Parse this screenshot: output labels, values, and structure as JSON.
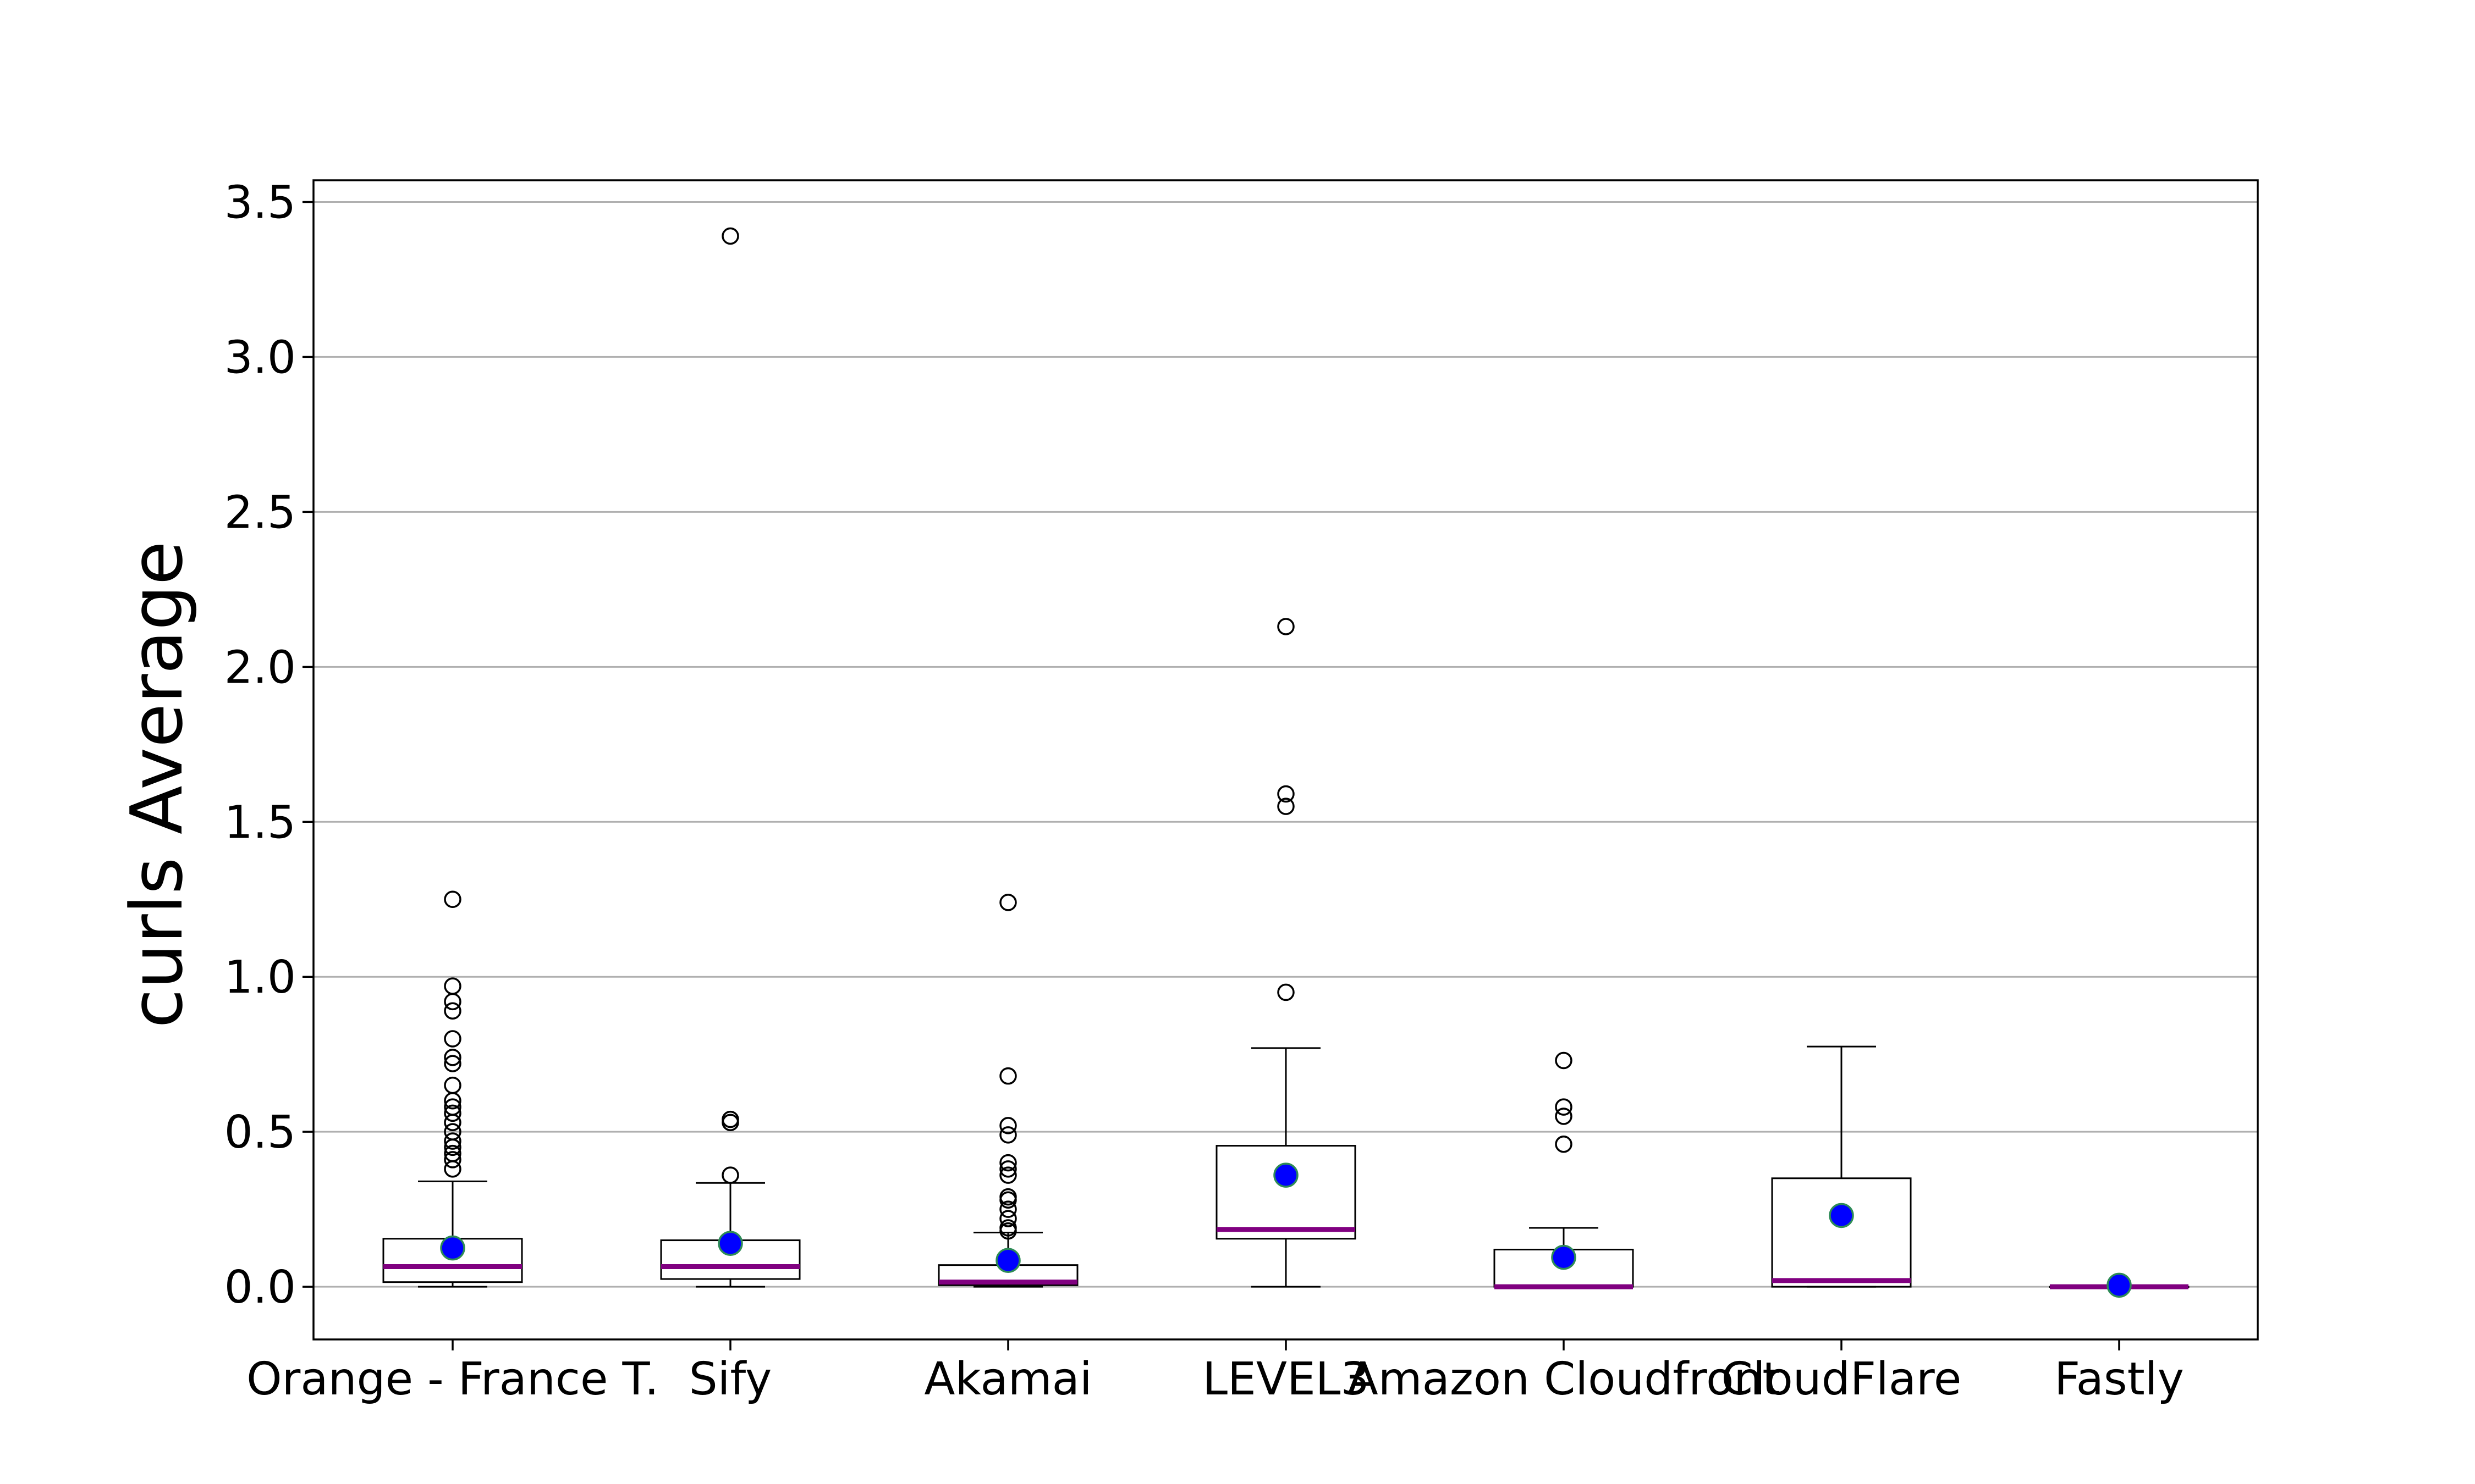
{
  "chart_data": {
    "type": "box",
    "title": "",
    "xlabel": "",
    "ylabel": "curls Average",
    "ylim": [
      -0.17,
      3.57
    ],
    "yticks": [
      0.0,
      0.5,
      1.0,
      1.5,
      2.0,
      2.5,
      3.0,
      3.5
    ],
    "ytick_labels": [
      "0.0",
      "0.5",
      "1.0",
      "1.5",
      "2.0",
      "2.5",
      "3.0",
      "3.5"
    ],
    "grid": "horizontal",
    "colors": {
      "median": "#800080",
      "mean": "#0000ff",
      "mean_edge": "#2e8b57",
      "box": "#000000",
      "grid": "#b0b0b0"
    },
    "categories": [
      "Orange - France T.",
      "Sify",
      "Akamai",
      "LEVEL3",
      "Amazon Cloudfront",
      "CloudFlare",
      "Fastly"
    ],
    "boxes": [
      {
        "category": "Orange - France T.",
        "whisker_low": 0.0,
        "q1": 0.015,
        "median": 0.065,
        "q3": 0.155,
        "whisker_high": 0.34,
        "mean": 0.125,
        "outliers": [
          0.38,
          0.41,
          0.43,
          0.45,
          0.47,
          0.5,
          0.53,
          0.56,
          0.58,
          0.6,
          0.65,
          0.72,
          0.74,
          0.8,
          0.89,
          0.92,
          0.97,
          1.25
        ]
      },
      {
        "category": "Sify",
        "whisker_low": 0.0,
        "q1": 0.025,
        "median": 0.065,
        "q3": 0.15,
        "whisker_high": 0.335,
        "mean": 0.14,
        "outliers": [
          0.36,
          0.53,
          0.54,
          3.39
        ]
      },
      {
        "category": "Akamai",
        "whisker_low": 0.0,
        "q1": 0.005,
        "median": 0.015,
        "q3": 0.07,
        "whisker_high": 0.175,
        "mean": 0.085,
        "outliers": [
          0.18,
          0.19,
          0.22,
          0.25,
          0.28,
          0.29,
          0.36,
          0.38,
          0.4,
          0.49,
          0.52,
          0.68,
          1.24
        ]
      },
      {
        "category": "LEVEL3",
        "whisker_low": 0.0,
        "q1": 0.155,
        "median": 0.185,
        "q3": 0.455,
        "whisker_high": 0.77,
        "mean": 0.36,
        "outliers": [
          0.95,
          1.55,
          1.59,
          2.13
        ]
      },
      {
        "category": "Amazon Cloudfront",
        "whisker_low": 0.0,
        "q1": 0.0,
        "median": 0.0,
        "q3": 0.12,
        "whisker_high": 0.19,
        "mean": 0.095,
        "outliers": [
          0.46,
          0.55,
          0.58,
          0.73
        ]
      },
      {
        "category": "CloudFlare",
        "whisker_low": 0.0,
        "q1": 0.0,
        "median": 0.02,
        "q3": 0.35,
        "whisker_high": 0.775,
        "mean": 0.23,
        "outliers": []
      },
      {
        "category": "Fastly",
        "whisker_low": 0.0,
        "q1": 0.0,
        "median": 0.0,
        "q3": 0.0,
        "whisker_high": 0.0,
        "mean": 0.005,
        "outliers": []
      }
    ]
  }
}
